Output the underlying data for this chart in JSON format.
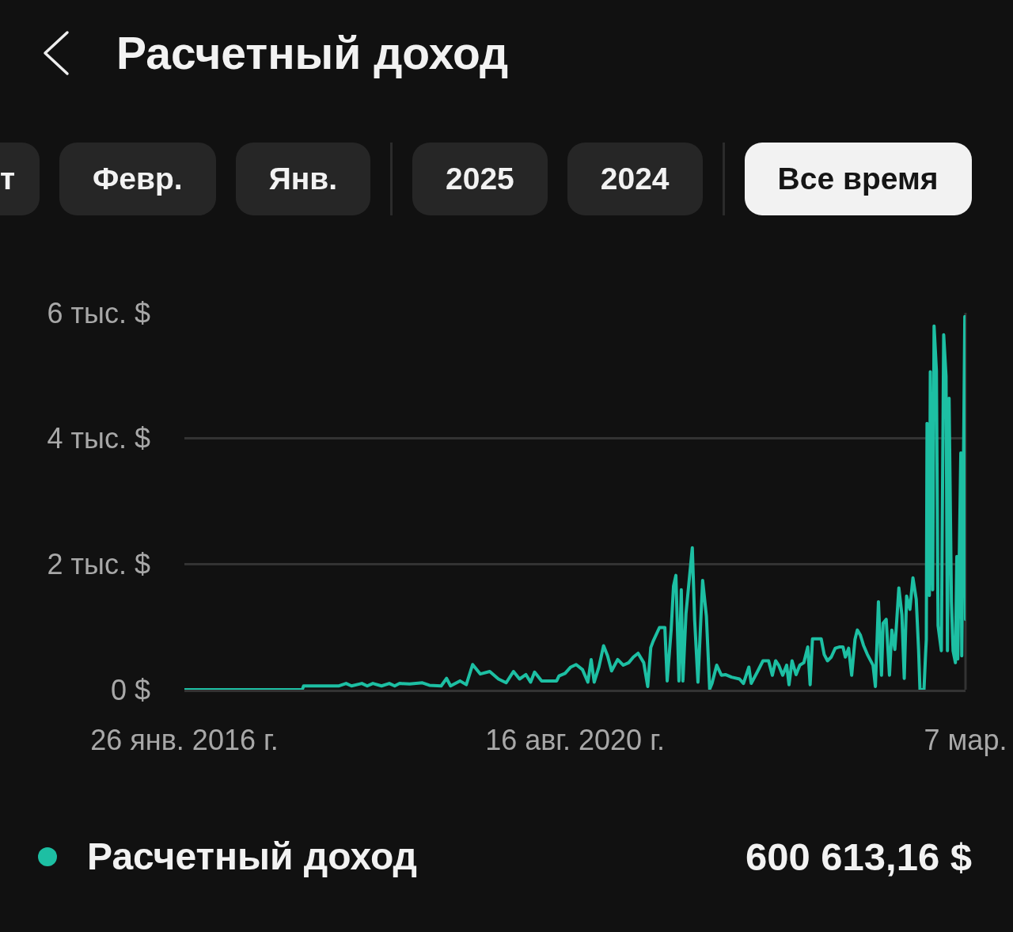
{
  "chart_data": {
    "type": "line",
    "title": "Расчетный доход",
    "annotations": [
      "т",
      "Февр.",
      "Янв.",
      "2025",
      "2024",
      "Все время",
      "600 613,16 $"
    ],
    "x": [
      "2016-01-26",
      "2017-06-11",
      "2017-06-17",
      "2017-11-15",
      "2017-12-15",
      "2018-01-07",
      "2018-02-20",
      "2018-03-15",
      "2018-04-08",
      "2018-05-15",
      "2018-06-17",
      "2018-07-10",
      "2018-07-31",
      "2018-09-12",
      "2018-11-05",
      "2018-12-05",
      "2019-01-24",
      "2019-02-16",
      "2019-03-05",
      "2019-04-14",
      "2019-05-11",
      "2019-06-07",
      "2019-07-10",
      "2019-08-19",
      "2019-09-25",
      "2019-10-28",
      "2019-11-28",
      "2019-12-24",
      "2020-01-20",
      "2020-02-09",
      "2020-02-26",
      "2020-03-27",
      "2020-05-30",
      "2020-06-09",
      "2020-07-05",
      "2020-07-29",
      "2020-08-21",
      "2020-09-17",
      "2020-10-10",
      "2020-10-24",
      "2020-11-06",
      "2020-11-26",
      "2020-12-16",
      "2021-01-02",
      "2021-01-19",
      "2021-02-14",
      "2021-03-10",
      "2021-04-02",
      "2021-04-22",
      "2021-05-12",
      "2021-06-05",
      "2021-06-22",
      "2021-07-05",
      "2021-07-15",
      "2021-08-11",
      "2021-09-03",
      "2021-09-13",
      "2021-09-30",
      "2021-10-10",
      "2021-10-20",
      "2021-11-02",
      "2021-11-12",
      "2021-11-19",
      "2021-12-02",
      "2021-12-19",
      "2021-12-29",
      "2022-01-08",
      "2022-01-22",
      "2022-02-11",
      "2022-02-27",
      "2022-03-13",
      "2022-03-23",
      "2022-04-12",
      "2022-05-02",
      "2022-05-19",
      "2022-06-14",
      "2022-07-18",
      "2022-08-04",
      "2022-08-27",
      "2022-09-06",
      "2022-10-03",
      "2022-10-26",
      "2022-11-19",
      "2022-12-05",
      "2022-12-19",
      "2023-01-01",
      "2023-01-18",
      "2023-02-04",
      "2023-02-14",
      "2023-02-27",
      "2023-03-16",
      "2023-04-01",
      "2023-04-18",
      "2023-05-05",
      "2023-05-15",
      "2023-05-25",
      "2023-07-01",
      "2023-07-14",
      "2023-07-28",
      "2023-08-13",
      "2023-08-30",
      "2023-09-16",
      "2023-10-02",
      "2023-10-12",
      "2023-10-26",
      "2023-11-08",
      "2023-11-22",
      "2023-12-02",
      "2023-12-15",
      "2023-12-28",
      "2024-01-14",
      "2024-02-07",
      "2024-02-17",
      "2024-03-01",
      "2024-03-14",
      "2024-03-21",
      "2024-04-03",
      "2024-04-17",
      "2024-04-27",
      "2024-05-10",
      "2024-05-27",
      "2024-06-09",
      "2024-06-19",
      "2024-06-29",
      "2024-07-13",
      "2024-07-26",
      "2024-08-09",
      "2024-08-19",
      "2024-08-25",
      "2024-09-11",
      "2024-09-18",
      "2024-09-21",
      "2024-09-24",
      "2024-10-04",
      "2024-10-08",
      "2024-10-18",
      "2024-10-24",
      "2024-11-03",
      "2024-11-10",
      "2024-11-24",
      "2024-12-04",
      "2024-12-14",
      "2024-12-20",
      "2024-12-27",
      "2025-01-06",
      "2025-01-13",
      "2025-01-23",
      "2025-01-29",
      "2025-02-02",
      "2025-02-15",
      "2025-02-19",
      "2025-03-04",
      "2025-03-07"
    ],
    "series": [
      {
        "name": "Расчетный доход",
        "color": "#1dbfa3",
        "values": [
          0,
          0,
          0.06,
          0.06,
          0.1,
          0.06,
          0.1,
          0.06,
          0.1,
          0.06,
          0.1,
          0.06,
          0.1,
          0.09,
          0.11,
          0.07,
          0.06,
          0.18,
          0.06,
          0.14,
          0.08,
          0.4,
          0.25,
          0.29,
          0.17,
          0.11,
          0.29,
          0.17,
          0.24,
          0.12,
          0.28,
          0.14,
          0.14,
          0.22,
          0.26,
          0.36,
          0.4,
          0.32,
          0.12,
          0.48,
          0.12,
          0.36,
          0.7,
          0.54,
          0.3,
          0.48,
          0.39,
          0.43,
          0.52,
          0.58,
          0.43,
          0.05,
          0.67,
          0.77,
          0.99,
          0.99,
          0.14,
          0.96,
          1.65,
          1.82,
          0.14,
          1.59,
          0.14,
          1.21,
          1.87,
          2.26,
          1.11,
          0.12,
          1.74,
          1.17,
          0.01,
          0.1,
          0.39,
          0.23,
          0.24,
          0.2,
          0.17,
          0.1,
          0.36,
          0.1,
          0.29,
          0.46,
          0.46,
          0.23,
          0.46,
          0.39,
          0.23,
          0.39,
          0.08,
          0.46,
          0.24,
          0.39,
          0.43,
          0.68,
          0.08,
          0.81,
          0.81,
          0.56,
          0.46,
          0.52,
          0.66,
          0.68,
          0.68,
          0.52,
          0.66,
          0.23,
          0.8,
          0.95,
          0.87,
          0.71,
          0.56,
          0.39,
          0.05,
          1.4,
          0.23,
          1.06,
          1.12,
          0.23,
          0.95,
          0.64,
          1.62,
          1.19,
          0.18,
          1.49,
          1.28,
          1.78,
          1.44,
          0.64,
          0,
          0,
          0.58,
          0.8,
          4.24,
          1.5,
          5.06,
          1.59,
          5.79,
          5.08,
          1.02,
          0.62,
          5.65,
          4.99,
          0.62,
          4.64,
          1.4,
          0.62,
          0.43,
          2.12,
          0.49,
          3.77,
          0.54,
          5.94,
          1.12
        ]
      }
    ],
    "xlim": [
      "2016-01-26",
      "2025-03-07"
    ],
    "xticks": [
      {
        "value": "2016-01-26",
        "label": "26 янв. 2016 г."
      },
      {
        "value": "2020-08-16",
        "label": "16 авг. 2020 г."
      },
      {
        "value": "2025-03-07",
        "label": "7 мар."
      }
    ],
    "ylim": [
      0,
      6
    ],
    "yticks": [
      {
        "value": 0,
        "label": "0 $"
      },
      {
        "value": 2,
        "label": "2 тыс. $"
      },
      {
        "value": 4,
        "label": "4 тыс. $"
      },
      {
        "value": 6,
        "label": "6 тыс. $"
      }
    ],
    "grid": "y",
    "legend": "bottom"
  }
}
